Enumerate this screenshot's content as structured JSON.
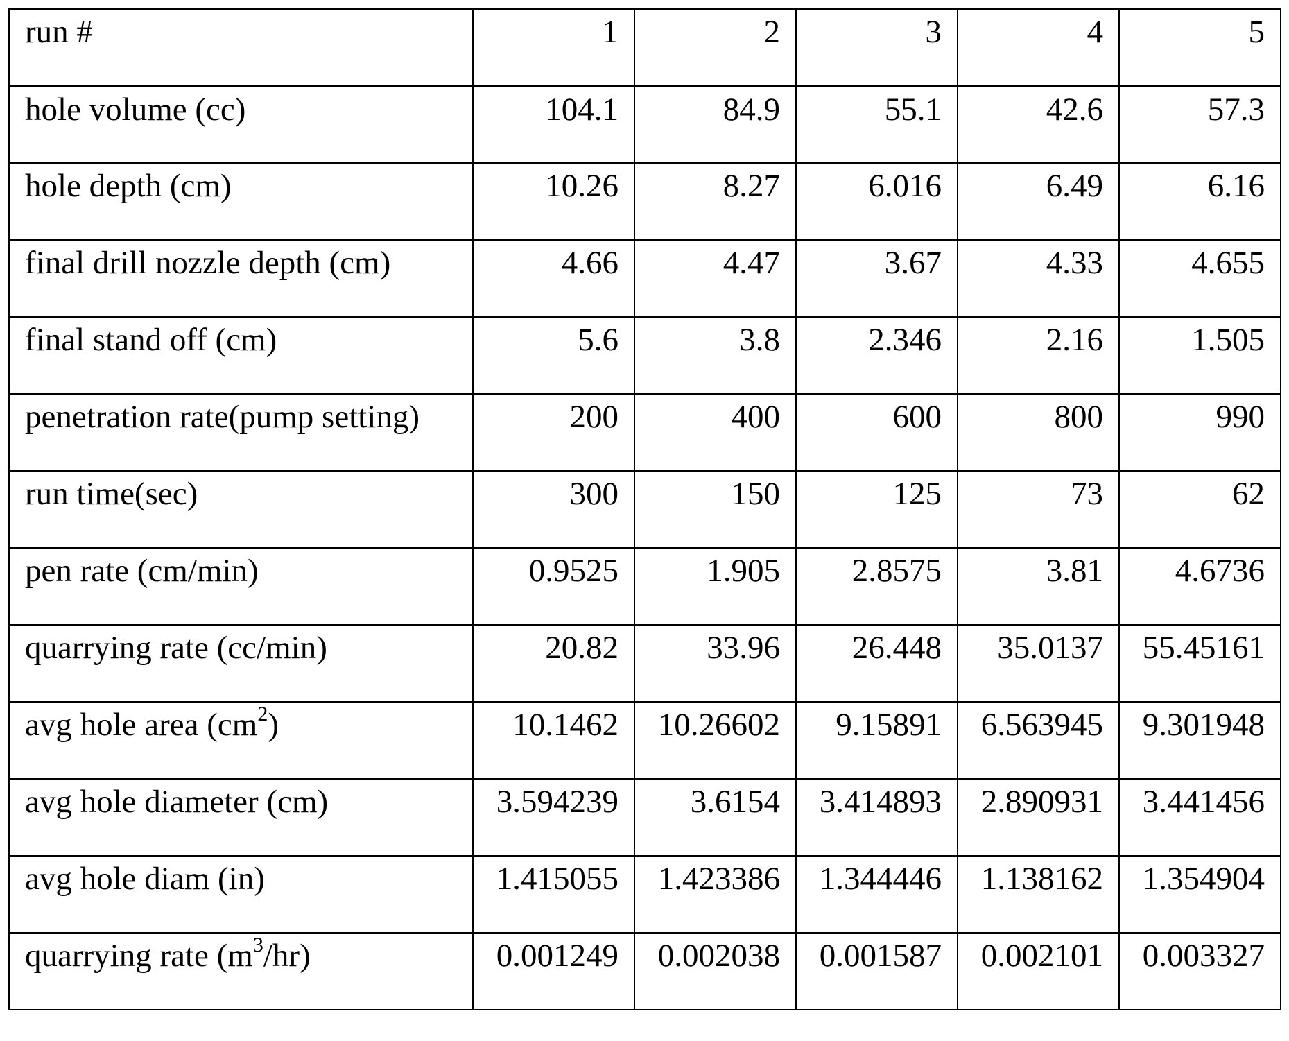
{
  "table": {
    "header": {
      "label": "run #",
      "runs": [
        "1",
        "2",
        "3",
        "4",
        "5"
      ]
    },
    "rows": [
      {
        "label": "hole volume (cc)",
        "values": [
          "104.1",
          "84.9",
          "55.1",
          "42.6",
          "57.3"
        ]
      },
      {
        "label": "hole depth (cm)",
        "values": [
          "10.26",
          "8.27",
          "6.016",
          "6.49",
          "6.16"
        ]
      },
      {
        "label": "final drill nozzle depth (cm)",
        "values": [
          "4.66",
          "4.47",
          "3.67",
          "4.33",
          "4.655"
        ]
      },
      {
        "label": "final stand off (cm)",
        "values": [
          "5.6",
          "3.8",
          "2.346",
          "2.16",
          "1.505"
        ]
      },
      {
        "label": "penetration rate(pump setting)",
        "values": [
          "200",
          "400",
          "600",
          "800",
          "990"
        ]
      },
      {
        "label": "run time(sec)",
        "values": [
          "300",
          "150",
          "125",
          "73",
          "62"
        ]
      },
      {
        "label": "pen rate (cm/min)",
        "values": [
          "0.9525",
          "1.905",
          "2.8575",
          "3.81",
          "4.6736"
        ]
      },
      {
        "label": "quarrying rate (cc/min)",
        "values": [
          "20.82",
          "33.96",
          "26.448",
          "35.0137",
          "55.45161"
        ]
      },
      {
        "label_prefix": "avg hole area (cm",
        "label_sup": "2",
        "label_suffix": ")",
        "values": [
          "10.1462",
          "10.26602",
          "9.15891",
          "6.563945",
          "9.301948"
        ]
      },
      {
        "label": "avg hole diameter (cm)",
        "values": [
          "3.594239",
          "3.6154",
          "3.414893",
          "2.890931",
          "3.441456"
        ]
      },
      {
        "label": "avg hole diam (in)",
        "values": [
          "1.415055",
          "1.423386",
          "1.344446",
          "1.138162",
          "1.354904"
        ]
      },
      {
        "label_prefix": "quarrying rate (m",
        "label_sup": "3",
        "label_suffix": "/hr)",
        "values": [
          "0.001249",
          "0.002038",
          "0.001587",
          "0.002101",
          "0.003327"
        ]
      }
    ]
  }
}
